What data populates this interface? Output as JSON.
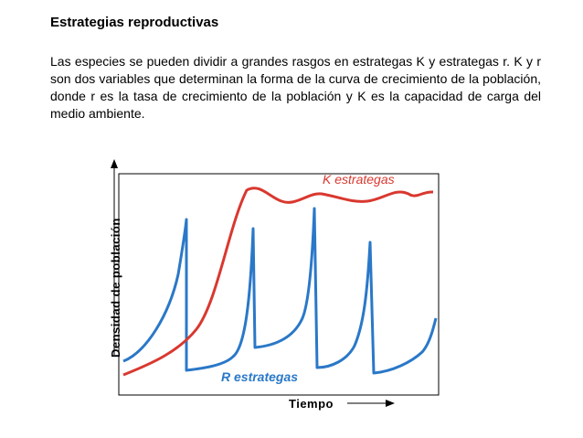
{
  "heading": "Estrategias reproductivas",
  "paragraph": "Las especies se pueden dividir a grandes rasgos en estrategas K y estrategas r. K y r son dos variables que determinan la forma de la curva de crecimiento de la población, donde r es la tasa de crecimiento de la población y K es la capacidad de carga del medio ambiente.",
  "diagram": {
    "y_axis_label": "Densidad de población",
    "x_axis_label": "Tiempo",
    "k_label": "K estrategas",
    "r_label": "R estrategas",
    "colors": {
      "k_curve": "#d9382f",
      "r_curve": "#2a78c8",
      "frame": "#000000"
    }
  }
}
